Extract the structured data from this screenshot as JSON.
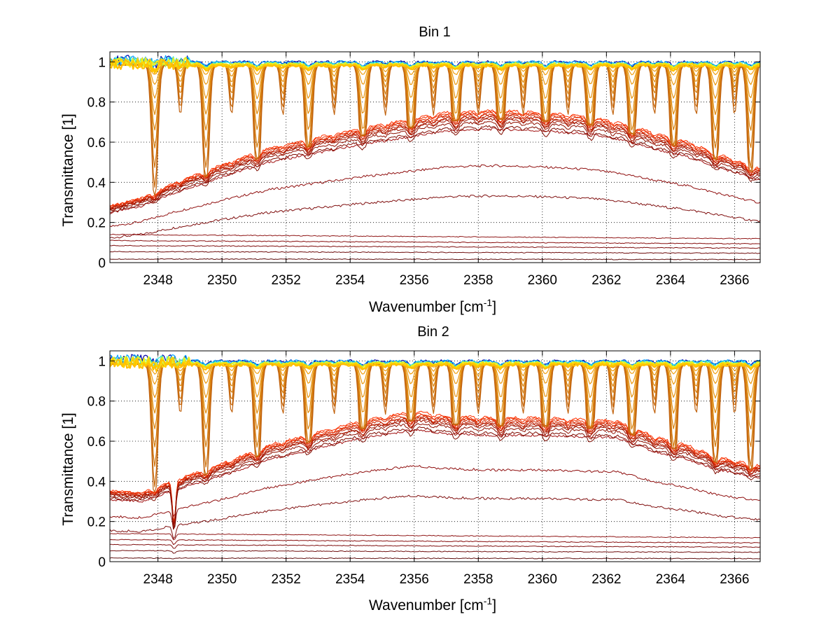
{
  "figure": {
    "background": "#ffffff"
  },
  "chart_data": [
    {
      "type": "line",
      "title": "Bin 1",
      "xlabel": "Wavenumber [cm",
      "xlabel_sup": "-1",
      "xlabel_close": "]",
      "ylabel": "Transmittance [1]",
      "xlim": [
        2346.5,
        2366.8
      ],
      "ylim": [
        0,
        1.05
      ],
      "xticks": [
        2348,
        2350,
        2352,
        2354,
        2356,
        2358,
        2360,
        2362,
        2364,
        2366
      ],
      "yticks": [
        0,
        0.2,
        0.4,
        0.6,
        0.8,
        1
      ],
      "ytick_labels": [
        "0",
        "0.2",
        "0.4",
        "0.6",
        "0.8",
        "1"
      ],
      "grid": true,
      "colormap": "jet",
      "series_groups": [
        {
          "kind": "near-unity",
          "colors": [
            "#0000a8",
            "#00a0ff",
            "#30e8d0",
            "#a8f050",
            "#e8f020",
            "#ffd000",
            "#ffbf00"
          ],
          "levels": [
            1.0,
            1.0,
            0.995,
            0.99,
            0.99,
            0.985,
            0.98
          ]
        },
        {
          "kind": "absorption-lines",
          "colors": [
            "#f0a010",
            "#eb9a10",
            "#e69410",
            "#e08c10",
            "#da8410",
            "#d47c10",
            "#ce7410",
            "#c86c10",
            "#c26410"
          ],
          "line_depths": [
            0.05,
            0.1,
            0.17,
            0.25,
            0.33,
            0.42,
            0.52,
            0.62,
            0.72
          ]
        },
        {
          "kind": "saturated-band",
          "colors": [
            "#ff3000",
            "#f03000",
            "#e02a00",
            "#d02400",
            "#c01e00",
            "#b01a00",
            "#a01400",
            "#901000",
            "#800c00"
          ],
          "scales": [
            1.04,
            1.03,
            1.02,
            1.01,
            1.0,
            0.99,
            0.98,
            0.96,
            0.93
          ]
        },
        {
          "kind": "low",
          "colors": [
            "#a01010",
            "#901010",
            "#801010",
            "#901818",
            "#881010",
            "#801010",
            "#701010",
            "#601010"
          ],
          "scales": [
            0.62,
            0.45,
            0.31,
            0.14,
            0.11,
            0.085,
            0.055,
            0.018
          ]
        }
      ],
      "strong_lines": [
        2347.9,
        2349.5,
        2351.1,
        2352.7,
        2354.4,
        2355.9,
        2357.3,
        2358.7,
        2360.1,
        2361.5,
        2362.8,
        2364.1,
        2365.4,
        2366.5
      ],
      "weak_lines": [
        2348.7,
        2350.3,
        2351.9,
        2353.5,
        2355.1,
        2356.6,
        2358.0,
        2359.4,
        2360.8,
        2362.2,
        2363.5,
        2364.8,
        2366.0
      ],
      "envelope": [
        [
          2346.5,
          0.27
        ],
        [
          2347.5,
          0.31
        ],
        [
          2348.5,
          0.38
        ],
        [
          2350,
          0.47
        ],
        [
          2351.5,
          0.55
        ],
        [
          2353,
          0.6
        ],
        [
          2354.5,
          0.65
        ],
        [
          2356,
          0.69
        ],
        [
          2357,
          0.72
        ],
        [
          2358.5,
          0.73
        ],
        [
          2360,
          0.72
        ],
        [
          2361.5,
          0.7
        ],
        [
          2362.7,
          0.66
        ],
        [
          2363.5,
          0.62
        ],
        [
          2364.5,
          0.58
        ],
        [
          2365.5,
          0.52
        ],
        [
          2366.8,
          0.45
        ]
      ],
      "feature": null
    },
    {
      "type": "line",
      "title": "Bin 2",
      "xlabel": "Wavenumber [cm",
      "xlabel_sup": "-1",
      "xlabel_close": "]",
      "ylabel": "Transmittance [1]",
      "xlim": [
        2346.5,
        2366.8
      ],
      "ylim": [
        0,
        1.05
      ],
      "xticks": [
        2348,
        2350,
        2352,
        2354,
        2356,
        2358,
        2360,
        2362,
        2364,
        2366
      ],
      "yticks": [
        0,
        0.2,
        0.4,
        0.6,
        0.8,
        1
      ],
      "ytick_labels": [
        "0",
        "0.2",
        "0.4",
        "0.6",
        "0.8",
        "1"
      ],
      "grid": true,
      "colormap": "jet",
      "series_groups": [
        {
          "kind": "near-unity",
          "colors": [
            "#0000a8",
            "#00a0ff",
            "#30e8d0",
            "#a8f050",
            "#e8f020",
            "#ffd000",
            "#ffbf00"
          ],
          "levels": [
            1.0,
            1.0,
            0.995,
            0.99,
            0.99,
            0.985,
            0.98
          ]
        },
        {
          "kind": "absorption-lines",
          "colors": [
            "#f0a010",
            "#eb9a10",
            "#e69410",
            "#e08c10",
            "#da8410",
            "#d47c10",
            "#ce7410",
            "#c86c10",
            "#c26410"
          ],
          "line_depths": [
            0.05,
            0.1,
            0.17,
            0.25,
            0.33,
            0.42,
            0.52,
            0.62,
            0.72
          ]
        },
        {
          "kind": "saturated-band",
          "colors": [
            "#ff3000",
            "#f03000",
            "#e02a00",
            "#d02400",
            "#c01e00",
            "#b01a00",
            "#a01400",
            "#901000",
            "#800c00"
          ],
          "scales": [
            1.04,
            1.03,
            1.02,
            1.01,
            1.0,
            0.99,
            0.98,
            0.96,
            0.93
          ]
        },
        {
          "kind": "low",
          "colors": [
            "#a01010",
            "#901010",
            "#801010",
            "#901818",
            "#881010",
            "#801010",
            "#701010",
            "#601010"
          ],
          "scales": [
            0.62,
            0.45,
            0.31,
            0.14,
            0.11,
            0.085,
            0.055,
            0.018
          ]
        }
      ],
      "strong_lines": [
        2347.9,
        2349.5,
        2351.1,
        2352.7,
        2354.4,
        2355.9,
        2357.3,
        2358.7,
        2360.1,
        2361.5,
        2362.8,
        2364.1,
        2365.4,
        2366.5
      ],
      "weak_lines": [
        2348.7,
        2350.3,
        2351.9,
        2353.5,
        2355.1,
        2356.6,
        2358.0,
        2359.4,
        2360.8,
        2362.2,
        2363.5,
        2364.8,
        2366.0
      ],
      "envelope": [
        [
          2346.5,
          0.34
        ],
        [
          2347.5,
          0.33
        ],
        [
          2348.5,
          0.39
        ],
        [
          2350,
          0.47
        ],
        [
          2351.5,
          0.56
        ],
        [
          2353,
          0.62
        ],
        [
          2354.5,
          0.68
        ],
        [
          2356,
          0.72
        ],
        [
          2357,
          0.7
        ],
        [
          2358.5,
          0.69
        ],
        [
          2360,
          0.69
        ],
        [
          2361.5,
          0.68
        ],
        [
          2362.3,
          0.68
        ],
        [
          2363.5,
          0.6
        ],
        [
          2364.5,
          0.56
        ],
        [
          2365.5,
          0.5
        ],
        [
          2366.8,
          0.46
        ]
      ],
      "feature": {
        "x": 2348.5,
        "depth": 0.22
      }
    }
  ]
}
